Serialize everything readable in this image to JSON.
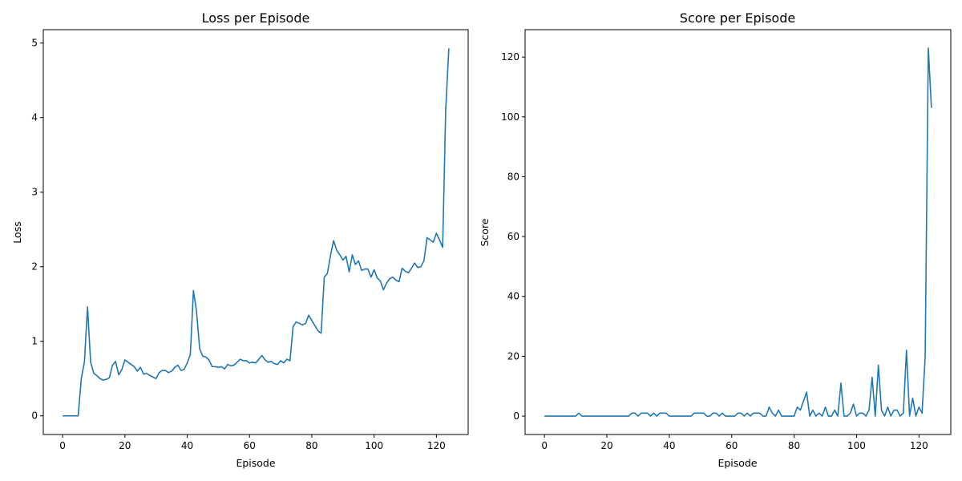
{
  "chart_data": [
    {
      "type": "line",
      "title": "Loss per Episode",
      "xlabel": "Episode",
      "ylabel": "Loss",
      "xlim": [
        -6.2,
        130.2
      ],
      "ylim": [
        -0.25,
        5.18
      ],
      "xticks": [
        0,
        20,
        40,
        60,
        80,
        100,
        120
      ],
      "yticks": [
        0,
        1,
        2,
        3,
        4,
        5
      ],
      "series": [
        {
          "color": "#1f77b4",
          "x": [
            0,
            1,
            2,
            3,
            4,
            5,
            6,
            7,
            8,
            9,
            10,
            11,
            12,
            13,
            14,
            15,
            16,
            17,
            18,
            19,
            20,
            21,
            22,
            23,
            24,
            25,
            26,
            27,
            28,
            29,
            30,
            31,
            32,
            33,
            34,
            35,
            36,
            37,
            38,
            39,
            40,
            41,
            42,
            43,
            44,
            45,
            46,
            47,
            48,
            49,
            50,
            51,
            52,
            53,
            54,
            55,
            56,
            57,
            58,
            59,
            60,
            61,
            62,
            63,
            64,
            65,
            66,
            67,
            68,
            69,
            70,
            71,
            72,
            73,
            74,
            75,
            76,
            77,
            78,
            79,
            80,
            81,
            82,
            83,
            84,
            85,
            86,
            87,
            88,
            89,
            90,
            91,
            92,
            93,
            94,
            95,
            96,
            97,
            98,
            99,
            100,
            101,
            102,
            103,
            104,
            105,
            106,
            107,
            108,
            109,
            110,
            111,
            112,
            113,
            114,
            115,
            116,
            117,
            118,
            119,
            120,
            121,
            122,
            123,
            124
          ],
          "y": [
            0,
            0,
            0,
            0,
            0,
            0,
            0.5,
            0.72,
            1.46,
            0.72,
            0.57,
            0.54,
            0.5,
            0.48,
            0.49,
            0.51,
            0.68,
            0.73,
            0.55,
            0.62,
            0.75,
            0.72,
            0.69,
            0.66,
            0.6,
            0.65,
            0.56,
            0.57,
            0.54,
            0.52,
            0.5,
            0.58,
            0.61,
            0.61,
            0.58,
            0.6,
            0.65,
            0.68,
            0.61,
            0.62,
            0.71,
            0.82,
            1.68,
            1.4,
            0.9,
            0.8,
            0.79,
            0.75,
            0.66,
            0.66,
            0.65,
            0.66,
            0.63,
            0.69,
            0.67,
            0.68,
            0.72,
            0.76,
            0.74,
            0.74,
            0.71,
            0.72,
            0.71,
            0.76,
            0.81,
            0.75,
            0.72,
            0.73,
            0.7,
            0.69,
            0.74,
            0.71,
            0.76,
            0.74,
            1.2,
            1.26,
            1.24,
            1.22,
            1.24,
            1.35,
            1.28,
            1.21,
            1.14,
            1.11,
            1.86,
            1.91,
            2.15,
            2.35,
            2.22,
            2.16,
            2.09,
            2.14,
            1.93,
            2.16,
            2.03,
            2.08,
            1.95,
            1.97,
            1.97,
            1.86,
            1.96,
            1.85,
            1.81,
            1.69,
            1.78,
            1.84,
            1.86,
            1.82,
            1.8,
            1.98,
            1.94,
            1.92,
            1.98,
            2.05,
            1.99,
            2.0,
            2.08,
            2.39,
            2.36,
            2.33,
            2.45,
            2.36,
            2.26,
            4.12,
            4.93
          ]
        }
      ]
    },
    {
      "type": "line",
      "title": "Score per Episode",
      "xlabel": "Episode",
      "ylabel": "Score",
      "xlim": [
        -6.2,
        130.2
      ],
      "ylim": [
        -6.15,
        129.15
      ],
      "xticks": [
        0,
        20,
        40,
        60,
        80,
        100,
        120
      ],
      "yticks": [
        0,
        20,
        40,
        60,
        80,
        100,
        120
      ],
      "series": [
        {
          "color": "#1f77b4",
          "x": [
            0,
            1,
            2,
            3,
            4,
            5,
            6,
            7,
            8,
            9,
            10,
            11,
            12,
            13,
            14,
            15,
            16,
            17,
            18,
            19,
            20,
            21,
            22,
            23,
            24,
            25,
            26,
            27,
            28,
            29,
            30,
            31,
            32,
            33,
            34,
            35,
            36,
            37,
            38,
            39,
            40,
            41,
            42,
            43,
            44,
            45,
            46,
            47,
            48,
            49,
            50,
            51,
            52,
            53,
            54,
            55,
            56,
            57,
            58,
            59,
            60,
            61,
            62,
            63,
            64,
            65,
            66,
            67,
            68,
            69,
            70,
            71,
            72,
            73,
            74,
            75,
            76,
            77,
            78,
            79,
            80,
            81,
            82,
            83,
            84,
            85,
            86,
            87,
            88,
            89,
            90,
            91,
            92,
            93,
            94,
            95,
            96,
            97,
            98,
            99,
            100,
            101,
            102,
            103,
            104,
            105,
            106,
            107,
            108,
            109,
            110,
            111,
            112,
            113,
            114,
            115,
            116,
            117,
            118,
            119,
            120,
            121,
            122,
            123,
            124
          ],
          "y": [
            0,
            0,
            0,
            0,
            0,
            0,
            0,
            0,
            0,
            0,
            0,
            1,
            0,
            0,
            0,
            0,
            0,
            0,
            0,
            0,
            0,
            0,
            0,
            0,
            0,
            0,
            0,
            0,
            1,
            1,
            0,
            1,
            1,
            1,
            0,
            1,
            0,
            1,
            1,
            1,
            0,
            0,
            0,
            0,
            0,
            0,
            0,
            0,
            1,
            1,
            1,
            1,
            0,
            0,
            1,
            1,
            0,
            1,
            0,
            0,
            0,
            0,
            1,
            1,
            0,
            1,
            0,
            1,
            1,
            1,
            0,
            0,
            3,
            1,
            0,
            2,
            0,
            0,
            0,
            0,
            0,
            3,
            2,
            5,
            8,
            0,
            2,
            0,
            1,
            0,
            3,
            0,
            0,
            2,
            0,
            11,
            0,
            0,
            1,
            4,
            0,
            1,
            1,
            0,
            2,
            13,
            0,
            17,
            2,
            0,
            3,
            0,
            2,
            2,
            0,
            1,
            22,
            0,
            6,
            0,
            3,
            1,
            20,
            123,
            103
          ]
        }
      ]
    }
  ]
}
